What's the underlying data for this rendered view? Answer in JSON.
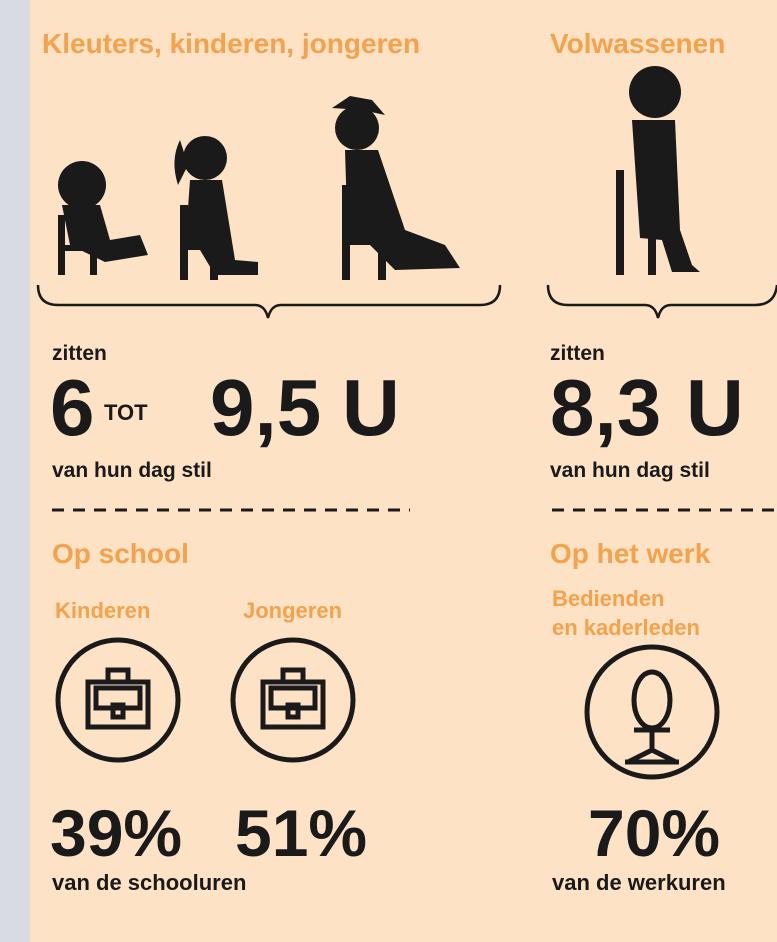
{
  "left": {
    "title": "Kleuters, kinderen, jongeren",
    "sit_label": "zitten",
    "from": "6",
    "connector": "TOT",
    "to": "9,5",
    "unit": "U",
    "sit_suffix": "van hun dag stil",
    "context": "Op school",
    "groups": [
      {
        "label": "Kinderen",
        "value": "39%"
      },
      {
        "label": "Jongeren",
        "value": "51%"
      }
    ],
    "footer": "van de schooluren"
  },
  "right": {
    "title": "Volwassenen",
    "sit_label": "zitten",
    "amount": "8,3",
    "unit": "U",
    "sit_suffix": "van hun dag stil",
    "context": "Op het werk",
    "group_lines": [
      "Bedienden",
      "en kaderleden"
    ],
    "value": "70%",
    "footer": "van de werkuren"
  }
}
